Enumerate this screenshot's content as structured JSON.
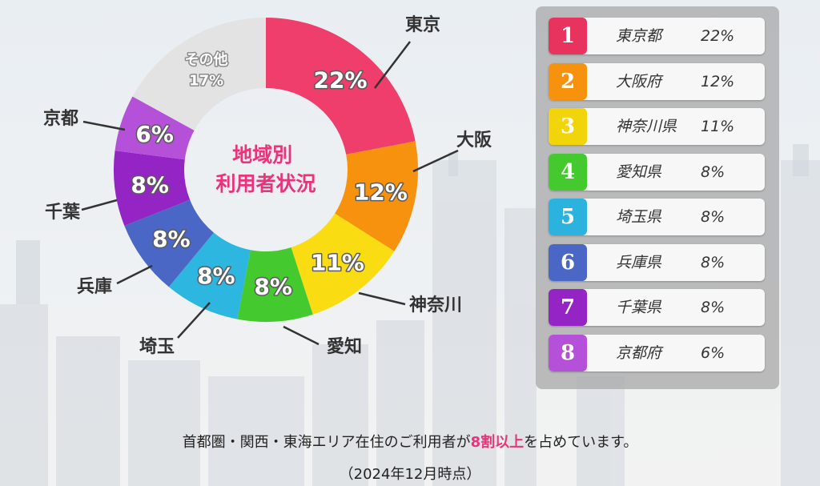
{
  "chart_data": {
    "type": "pie",
    "title": "地域別\n利用者状況",
    "title_lines": [
      "地域別",
      "利用者状況"
    ],
    "slices": [
      {
        "region": "東京",
        "value": 22,
        "label": "22%",
        "color": "#ef3e6c"
      },
      {
        "region": "大阪",
        "value": 12,
        "label": "12%",
        "color": "#f7920f"
      },
      {
        "region": "神奈川",
        "value": 11,
        "label": "11%",
        "color": "#f9dc12"
      },
      {
        "region": "愛知",
        "value": 8,
        "label": "8%",
        "color": "#44c92e"
      },
      {
        "region": "埼玉",
        "value": 8,
        "label": "8%",
        "color": "#2db6e0"
      },
      {
        "region": "兵庫",
        "value": 8,
        "label": "8%",
        "color": "#4b67c6"
      },
      {
        "region": "千葉",
        "value": 8,
        "label": "8%",
        "color": "#9424c4"
      },
      {
        "region": "京都",
        "value": 6,
        "label": "6%",
        "color": "#b550d8"
      },
      {
        "region": "その他",
        "value": 17,
        "label": "その他\n17%",
        "color": "#e3e3e3"
      }
    ]
  },
  "ranking": [
    {
      "rank": "1",
      "name": "東京都",
      "pct": "22%",
      "color": "#e8335f"
    },
    {
      "rank": "2",
      "name": "大阪府",
      "pct": "12%",
      "color": "#f7920f"
    },
    {
      "rank": "3",
      "name": "神奈川県",
      "pct": "11%",
      "color": "#f2d40a"
    },
    {
      "rank": "4",
      "name": "愛知県",
      "pct": "8%",
      "color": "#44c92e"
    },
    {
      "rank": "5",
      "name": "埼玉県",
      "pct": "8%",
      "color": "#2bb2de"
    },
    {
      "rank": "6",
      "name": "兵庫県",
      "pct": "8%",
      "color": "#4b67c6"
    },
    {
      "rank": "7",
      "name": "千葉県",
      "pct": "8%",
      "color": "#9424c4"
    },
    {
      "rank": "8",
      "name": "京都府",
      "pct": "6%",
      "color": "#b550d8"
    }
  ],
  "footer": {
    "line1_before": "首都圏・関西・東海エリア在住のご利用者が",
    "line1_highlight": "8割以上",
    "line1_after": "を占めています。",
    "line2": "（2024年12月時点）"
  }
}
